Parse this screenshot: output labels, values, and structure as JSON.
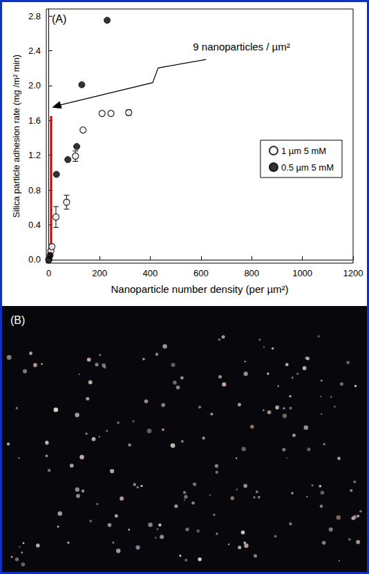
{
  "chart_data": {
    "type": "scatter",
    "panel_label": "(A)",
    "x_label": "Nanoparticle number density (per µm²)",
    "y_label": "Silica particle adhesion rate (mg /m² min)",
    "xlim": [
      -10,
      1200
    ],
    "xticks": [
      0,
      200,
      400,
      600,
      800,
      1000,
      1200
    ],
    "ylim": [
      -0.04,
      2.88
    ],
    "yticks": [
      {
        "value": 0,
        "label": "0.0"
      },
      0.4,
      0.8,
      1.2,
      1.6,
      {
        "value": 2,
        "label": "2.0"
      },
      2.4,
      2.8
    ],
    "grid": false,
    "legend": "right",
    "series": [
      {
        "name": "1 µm 5 mM",
        "marker": "open_circle",
        "color": "#000000",
        "x": [
          0,
          8,
          12,
          28,
          70,
          105,
          135,
          210,
          245,
          315
        ],
        "values": [
          0,
          0.1,
          0.15,
          0.49,
          0.66,
          1.19,
          1.49,
          1.68,
          1.68,
          1.69
        ],
        "errors": [
          null,
          null,
          null,
          0.12,
          0.08,
          0.06,
          null,
          null,
          null,
          0.03
        ]
      },
      {
        "name": "0.5 µm 5 mM",
        "marker": "circle",
        "color": "#000000",
        "x": [
          0,
          5,
          30,
          75,
          110,
          130,
          230
        ],
        "values": [
          0,
          0.05,
          0.98,
          1.15,
          1.3,
          2.01,
          2.75
        ]
      },
      {
        "type": "line",
        "color": "#d00000",
        "x": [
          9,
          9
        ],
        "values": [
          0,
          1.65
        ]
      }
    ],
    "annotations": [
      {
        "text": "9 nanoparticles / µm²",
        "x": 760,
        "y": 2.45,
        "arrow_from": [
          620,
          2.3
        ],
        "arrow_to": [
          15,
          1.75
        ]
      }
    ]
  },
  "image_panel": {
    "label": "(B)"
  }
}
